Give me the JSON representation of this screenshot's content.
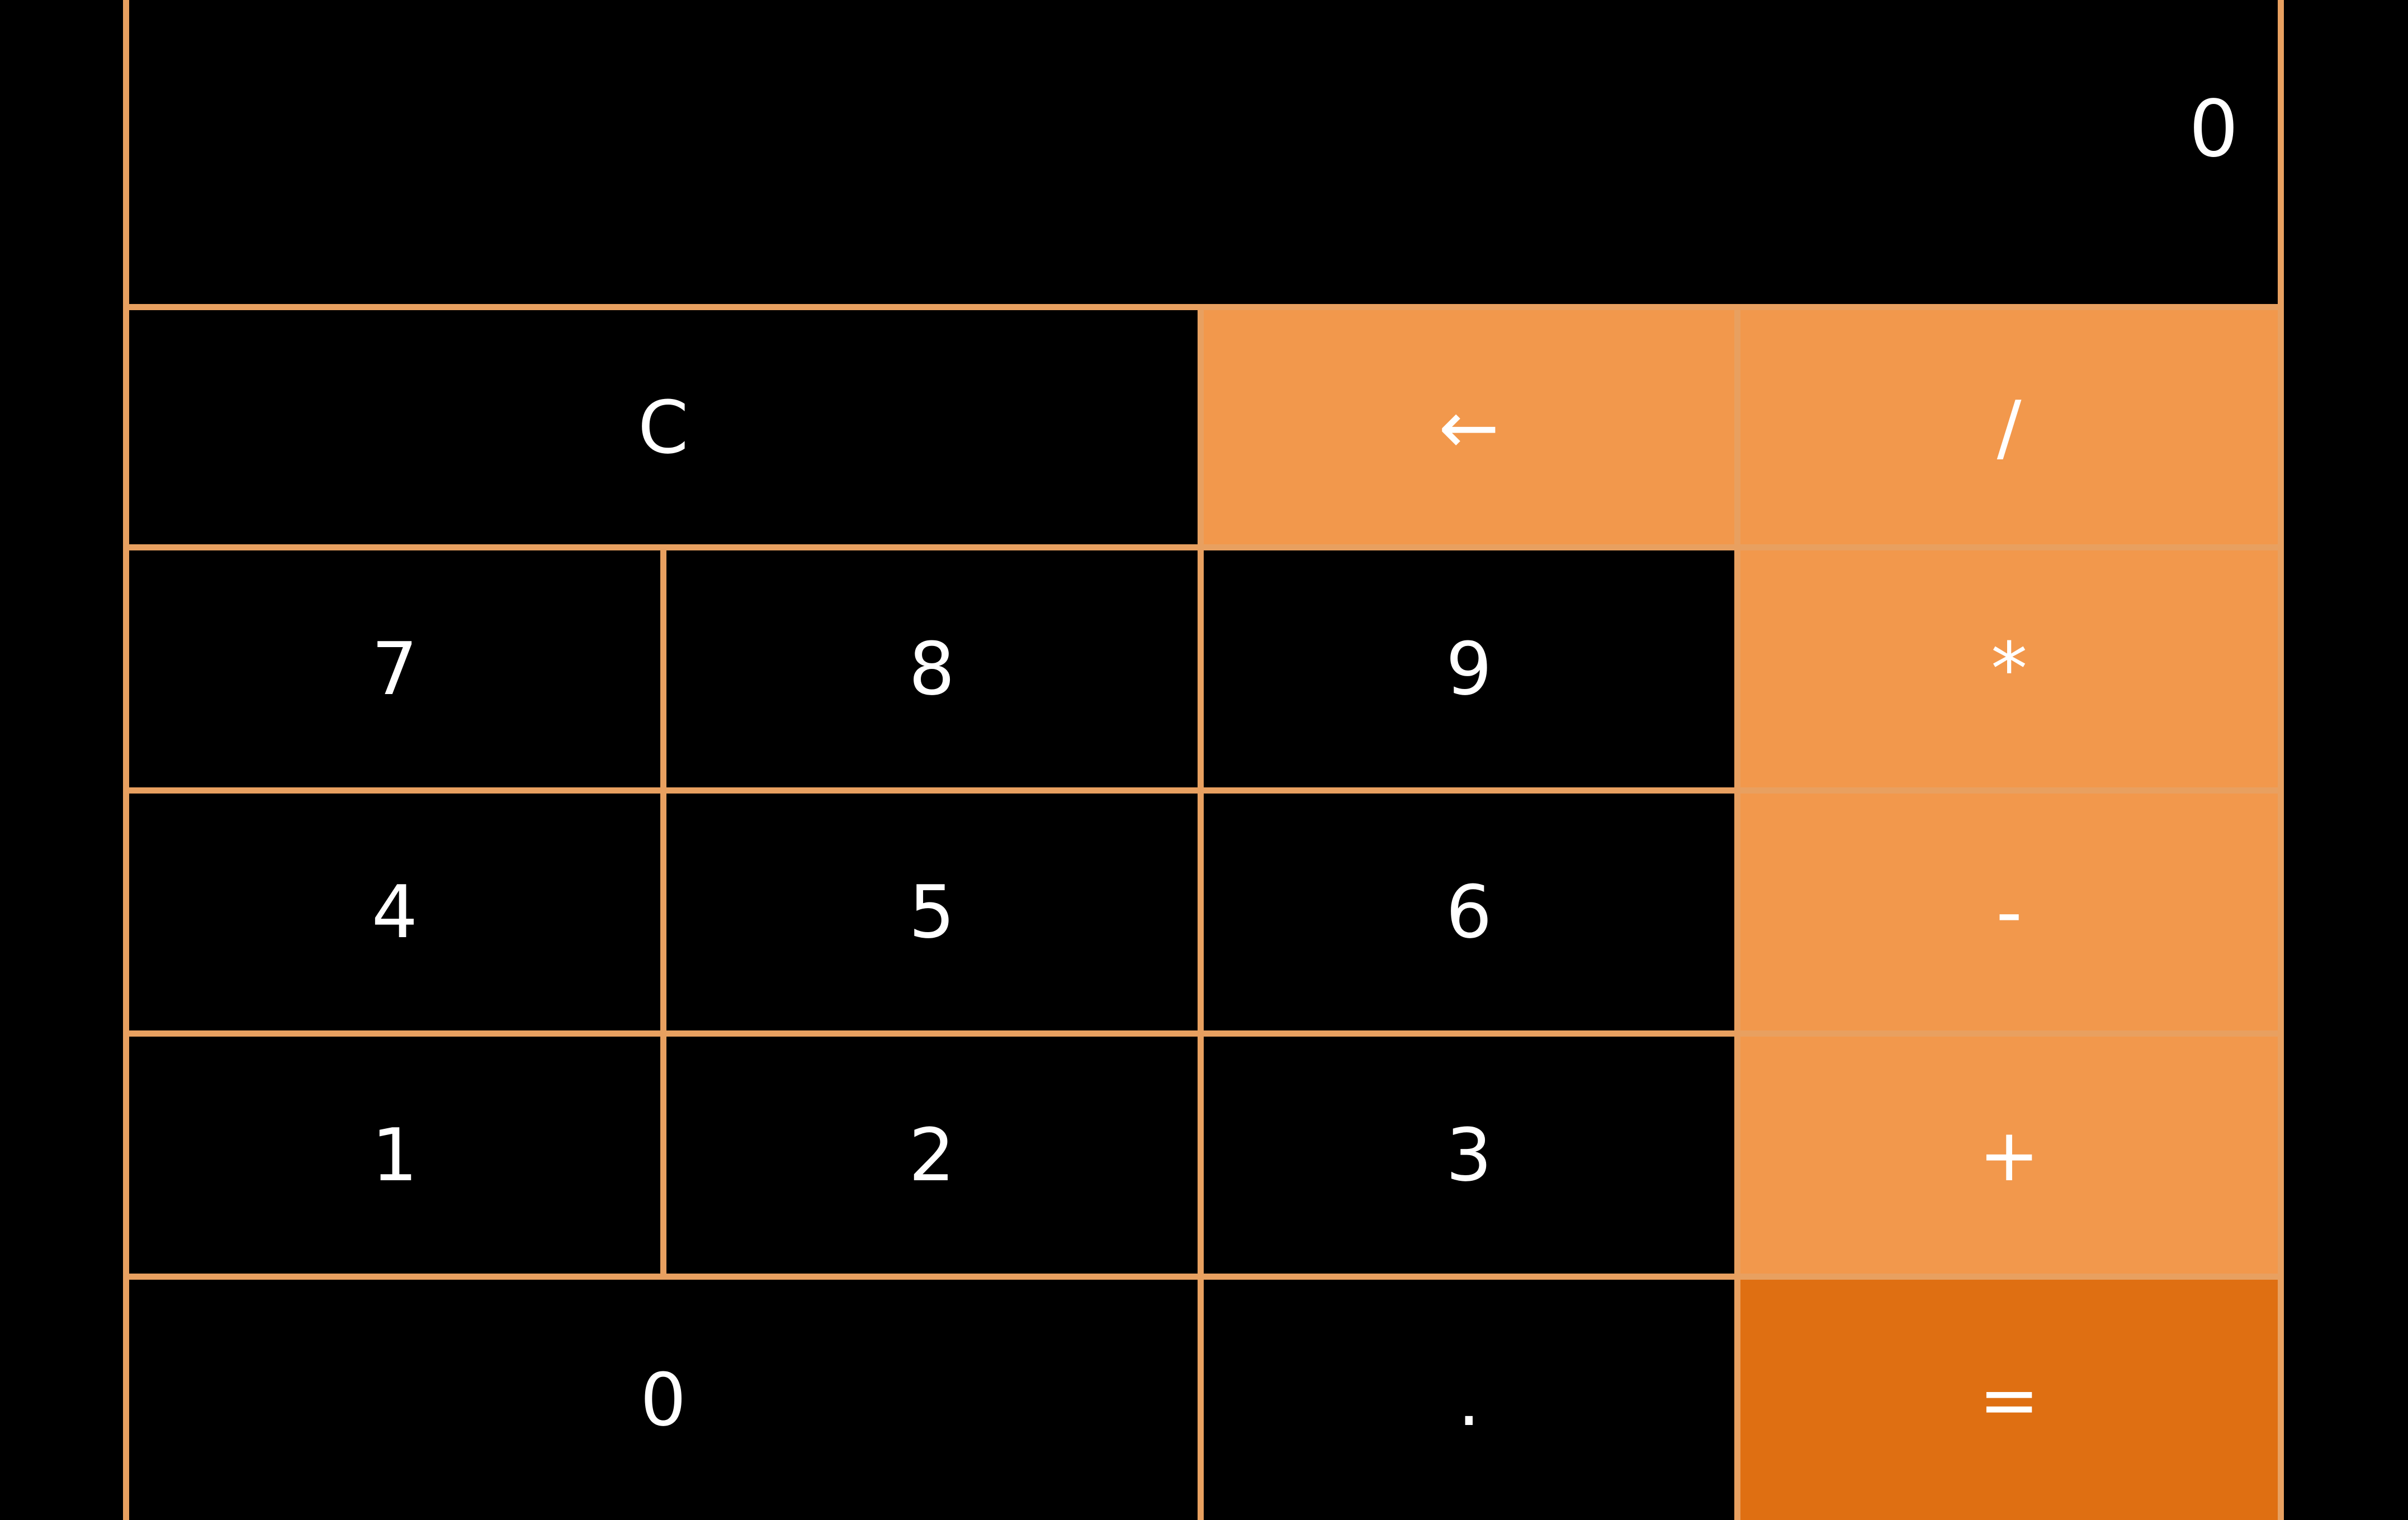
{
  "display": {
    "value": "0"
  },
  "keys": {
    "clear": "C",
    "backspace": "←",
    "divide": "/",
    "seven": "7",
    "eight": "8",
    "nine": "9",
    "multiply": "*",
    "four": "4",
    "five": "5",
    "six": "6",
    "subtract": "-",
    "one": "1",
    "two": "2",
    "three": "3",
    "add": "+",
    "zero": "0",
    "decimal": ".",
    "equals": "="
  },
  "colors": {
    "background": "#000000",
    "border": "#E8A060",
    "operator": "#F2984C",
    "equals": "#DF6F12",
    "text": "#FFFFFF"
  }
}
